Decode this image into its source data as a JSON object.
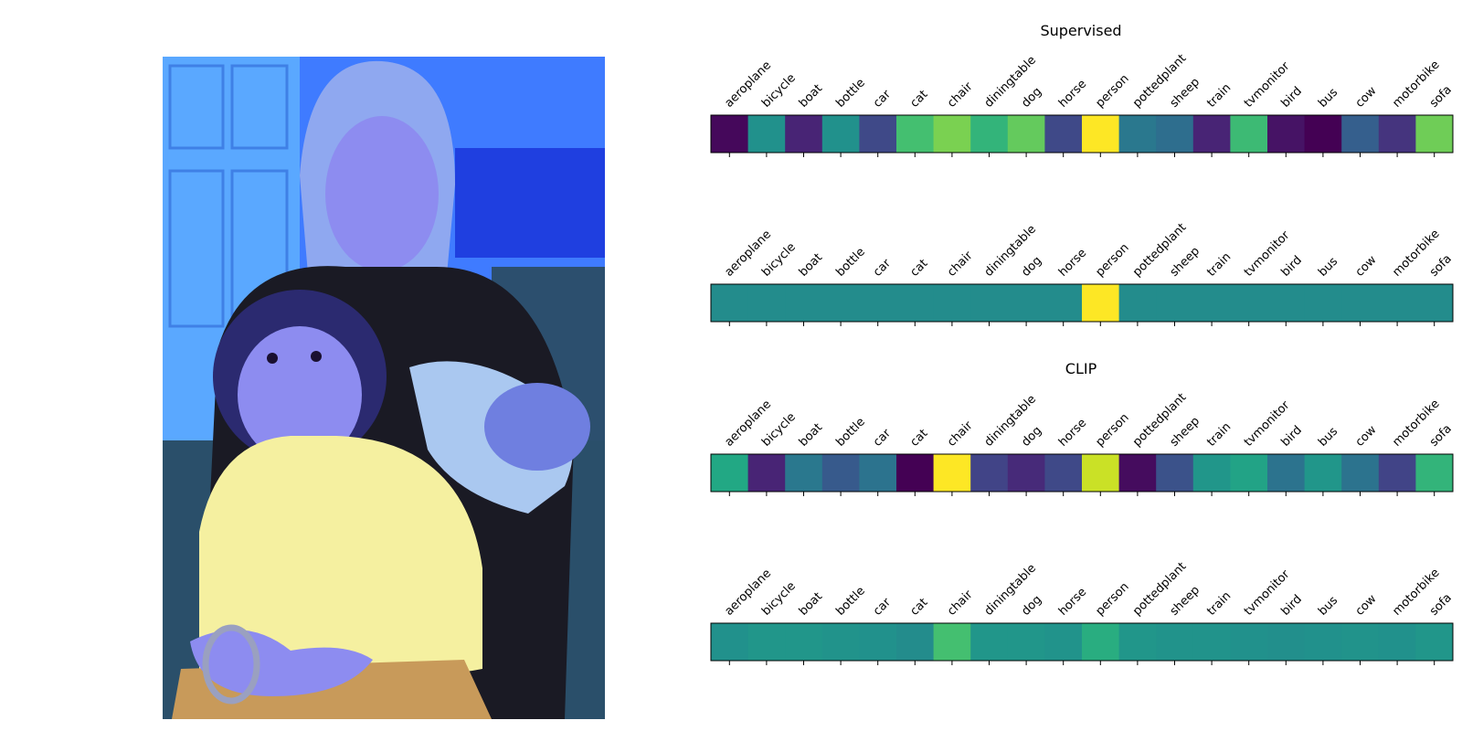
{
  "photo": {
    "description_icon": "photo-icon",
    "colors": {
      "wall": "#3f7bff",
      "door": "#5aa8ff",
      "sofa": "#2c4f6e",
      "sweater": "#f5f0a0",
      "shirt": "#1a1a24",
      "skin": "#8d8cf0",
      "hair": "#2b2a70",
      "pants": "#c89a5a"
    }
  },
  "chart_data": [
    {
      "type": "heatmap",
      "title": "Supervised",
      "colormap": "viridis",
      "categories": [
        "aeroplane",
        "bicycle",
        "boat",
        "bottle",
        "car",
        "cat",
        "chair",
        "diningtable",
        "dog",
        "horse",
        "person",
        "pottedplant",
        "sheep",
        "train",
        "tvmonitor",
        "bird",
        "bus",
        "cow",
        "motorbike",
        "sofa"
      ],
      "values": [
        0.02,
        0.5,
        0.1,
        0.5,
        0.22,
        0.7,
        0.8,
        0.65,
        0.76,
        0.22,
        1.0,
        0.4,
        0.36,
        0.1,
        0.68,
        0.05,
        0.0,
        0.3,
        0.15,
        0.78
      ]
    },
    {
      "type": "heatmap",
      "title": "",
      "colormap": "viridis",
      "categories": [
        "aeroplane",
        "bicycle",
        "boat",
        "bottle",
        "car",
        "cat",
        "chair",
        "diningtable",
        "dog",
        "horse",
        "person",
        "pottedplant",
        "sheep",
        "train",
        "tvmonitor",
        "bird",
        "bus",
        "cow",
        "motorbike",
        "sofa"
      ],
      "values": [
        0.48,
        0.48,
        0.48,
        0.48,
        0.48,
        0.48,
        0.48,
        0.48,
        0.48,
        0.48,
        1.0,
        0.48,
        0.48,
        0.48,
        0.48,
        0.48,
        0.48,
        0.48,
        0.48,
        0.48
      ]
    },
    {
      "type": "heatmap",
      "title": "CLIP",
      "colormap": "viridis",
      "categories": [
        "aeroplane",
        "bicycle",
        "boat",
        "bottle",
        "car",
        "cat",
        "chair",
        "diningtable",
        "dog",
        "horse",
        "person",
        "pottedplant",
        "sheep",
        "train",
        "tvmonitor",
        "bird",
        "bus",
        "cow",
        "motorbike",
        "sofa"
      ],
      "values": [
        0.6,
        0.1,
        0.4,
        0.28,
        0.38,
        0.0,
        1.0,
        0.2,
        0.12,
        0.22,
        0.92,
        0.03,
        0.25,
        0.52,
        0.58,
        0.38,
        0.52,
        0.38,
        0.2,
        0.65
      ]
    },
    {
      "type": "heatmap",
      "title": "",
      "colormap": "viridis",
      "categories": [
        "aeroplane",
        "bicycle",
        "boat",
        "bottle",
        "car",
        "cat",
        "chair",
        "diningtable",
        "dog",
        "horse",
        "person",
        "pottedplant",
        "sheep",
        "train",
        "tvmonitor",
        "bird",
        "bus",
        "cow",
        "motorbike",
        "sofa"
      ],
      "values": [
        0.5,
        0.52,
        0.52,
        0.51,
        0.5,
        0.48,
        0.7,
        0.52,
        0.52,
        0.51,
        0.62,
        0.52,
        0.51,
        0.51,
        0.5,
        0.49,
        0.5,
        0.51,
        0.5,
        0.52
      ]
    }
  ]
}
